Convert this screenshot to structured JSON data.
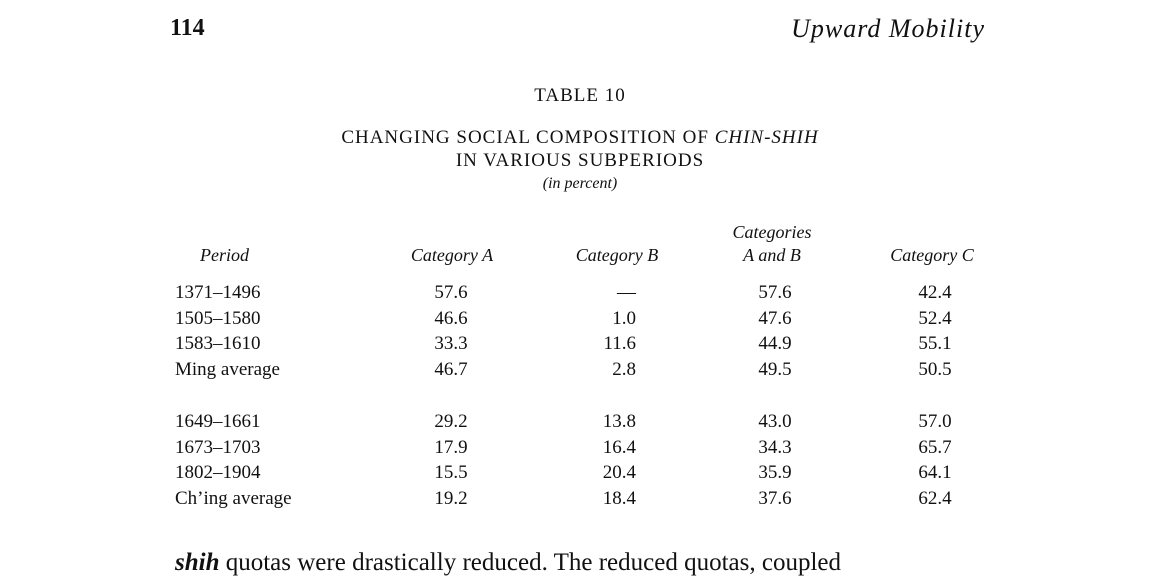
{
  "header": {
    "page_number": "114",
    "running_title": "Upward Mobility"
  },
  "table": {
    "label": "TABLE 10",
    "title_line1": "CHANGING SOCIAL COMPOSITION OF",
    "title_line1_italic": "CHIN-SHIH",
    "title_line2": "IN VARIOUS SUBPERIODS",
    "unit_note": "(in percent)",
    "columns": [
      [
        "Period"
      ],
      [
        "Category A"
      ],
      [
        "Category B"
      ],
      [
        "Categories",
        "A and B"
      ],
      [
        "Category C"
      ]
    ],
    "groups": [
      [
        [
          "1371–1496",
          "57.6",
          "—",
          "57.6",
          "42.4"
        ],
        [
          "1505–1580",
          "46.6",
          "1.0",
          "47.6",
          "52.4"
        ],
        [
          "1583–1610",
          "33.3",
          "11.6",
          "44.9",
          "55.1"
        ],
        [
          "Ming average",
          "46.7",
          "2.8",
          "49.5",
          "50.5"
        ]
      ],
      [
        [
          "1649–1661",
          "29.2",
          "13.8",
          "43.0",
          "57.0"
        ],
        [
          "1673–1703",
          "17.9",
          "16.4",
          "34.3",
          "65.7"
        ],
        [
          "1802–1904",
          "15.5",
          "20.4",
          "35.9",
          "64.1"
        ],
        [
          "Ch’ing average",
          "19.2",
          "18.4",
          "37.6",
          "62.4"
        ]
      ]
    ]
  },
  "body": {
    "lead_word": "shih",
    "text": "quotas were drastically reduced. The reduced quotas, coupled"
  }
}
